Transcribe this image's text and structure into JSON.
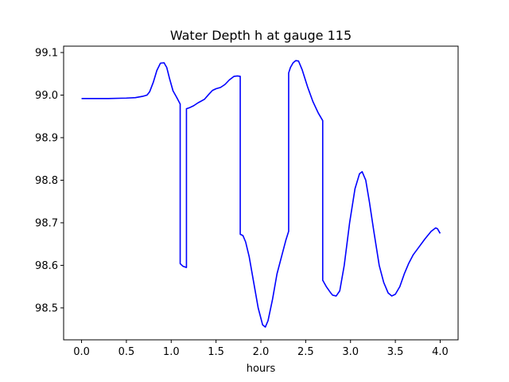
{
  "chart_data": {
    "type": "line",
    "title": "Water Depth h at gauge 115",
    "xlabel": "hours",
    "ylabel": "",
    "xlim": [
      -0.2,
      4.2
    ],
    "ylim": [
      98.425,
      99.115
    ],
    "xticks": [
      0.0,
      0.5,
      1.0,
      1.5,
      2.0,
      2.5,
      3.0,
      3.5,
      4.0
    ],
    "xtick_labels": [
      "0.0",
      "0.5",
      "1.0",
      "1.5",
      "2.0",
      "2.5",
      "3.0",
      "3.5",
      "4.0"
    ],
    "yticks": [
      98.5,
      98.6,
      98.7,
      98.8,
      98.9,
      99.0,
      99.1
    ],
    "ytick_labels": [
      "98.5",
      "98.6",
      "98.7",
      "98.8",
      "98.9",
      "99.0",
      "99.1"
    ],
    "grid": false,
    "series": [
      {
        "color": "#0000ff",
        "x": [
          0.0,
          0.3,
          0.5,
          0.6,
          0.68,
          0.73,
          0.76,
          0.8,
          0.84,
          0.88,
          0.92,
          0.95,
          0.98,
          1.02,
          1.06,
          1.1,
          1.1,
          1.13,
          1.17,
          1.17,
          1.2,
          1.25,
          1.3,
          1.37,
          1.42,
          1.46,
          1.5,
          1.55,
          1.6,
          1.65,
          1.7,
          1.74,
          1.77,
          1.77,
          1.8,
          1.83,
          1.87,
          1.92,
          1.97,
          2.02,
          2.05,
          2.08,
          2.13,
          2.18,
          2.23,
          2.28,
          2.31,
          2.31,
          2.33,
          2.36,
          2.39,
          2.42,
          2.46,
          2.52,
          2.58,
          2.64,
          2.69,
          2.69,
          2.73,
          2.78,
          2.8,
          2.84,
          2.88,
          2.93,
          2.99,
          3.05,
          3.1,
          3.13,
          3.17,
          3.21,
          3.26,
          3.32,
          3.37,
          3.42,
          3.46,
          3.5,
          3.55,
          3.6,
          3.65,
          3.7,
          3.76,
          3.83,
          3.9,
          3.95,
          3.97,
          4.0
        ],
        "y": [
          98.992,
          98.992,
          98.993,
          98.994,
          98.997,
          99.0,
          99.008,
          99.03,
          99.058,
          99.075,
          99.076,
          99.065,
          99.04,
          99.01,
          98.995,
          98.979,
          98.604,
          98.598,
          98.595,
          98.968,
          98.97,
          98.975,
          98.982,
          98.99,
          99.002,
          99.011,
          99.015,
          99.018,
          99.025,
          99.036,
          99.044,
          99.045,
          99.044,
          98.673,
          98.67,
          98.655,
          98.62,
          98.56,
          98.5,
          98.46,
          98.455,
          98.47,
          98.52,
          98.58,
          98.62,
          98.66,
          98.68,
          99.052,
          99.065,
          99.076,
          99.081,
          99.08,
          99.06,
          99.02,
          98.985,
          98.958,
          98.94,
          98.565,
          98.55,
          98.535,
          98.53,
          98.528,
          98.54,
          98.6,
          98.7,
          98.78,
          98.815,
          98.82,
          98.8,
          98.75,
          98.68,
          98.6,
          98.56,
          98.535,
          98.528,
          98.532,
          98.55,
          98.58,
          98.605,
          98.625,
          98.642,
          98.662,
          98.68,
          98.688,
          98.686,
          98.675
        ]
      }
    ]
  }
}
